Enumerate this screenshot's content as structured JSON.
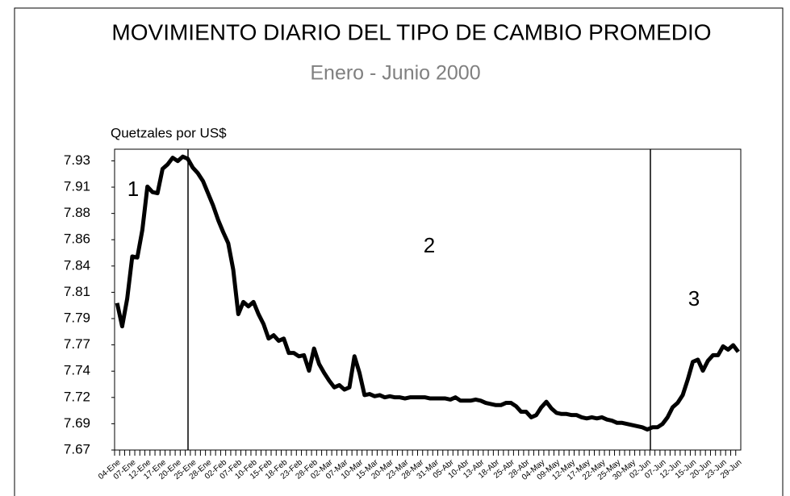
{
  "chart_data": {
    "type": "line",
    "title": "MOVIMIENTO DIARIO DEL TIPO DE CAMBIO PROMEDIO",
    "subtitle": "Enero - Junio 2000",
    "y_label": "Quetzales por US$",
    "annotations": [
      "1",
      "2",
      "3"
    ],
    "categories": [
      "04-Ene",
      null,
      null,
      "07-Ene",
      null,
      null,
      "12-Ene",
      null,
      null,
      "17-Ene",
      null,
      null,
      "20-Ene",
      null,
      null,
      "25-Ene",
      null,
      null,
      "28-Ene",
      null,
      null,
      "02-Feb",
      null,
      null,
      "07-Feb",
      null,
      null,
      "10-Feb",
      null,
      null,
      "15-Feb",
      null,
      null,
      "18-Feb",
      null,
      null,
      "23-Feb",
      null,
      null,
      "28-Feb",
      null,
      null,
      "02-Mar",
      null,
      null,
      "07-Mar",
      null,
      null,
      "10-Mar",
      null,
      null,
      "15-Mar",
      null,
      null,
      "20-Mar",
      null,
      null,
      "23-Mar",
      null,
      null,
      "28-Mar",
      null,
      null,
      "31-Mar",
      null,
      null,
      "05-Abr",
      null,
      null,
      "10-Abr",
      null,
      null,
      "13-Abr",
      null,
      null,
      "18-Abr",
      null,
      null,
      "25-Abr",
      null,
      null,
      "28-Abr",
      null,
      null,
      "04-May",
      null,
      null,
      "09-May",
      null,
      null,
      "12-May",
      null,
      null,
      "17-May",
      null,
      null,
      "22-May",
      null,
      null,
      "25-May",
      null,
      null,
      "30-May",
      null,
      null,
      "02-Jun",
      null,
      null,
      "07-Jun",
      null,
      null,
      "12-Jun",
      null,
      null,
      "15-Jun",
      null,
      null,
      "20-Jun",
      null,
      null,
      "23-Jun",
      null,
      null,
      "29-Jun"
    ],
    "values": [
      7.803,
      7.782,
      7.807,
      7.845,
      7.844,
      7.869,
      7.908,
      7.903,
      7.902,
      7.924,
      7.928,
      7.934,
      7.931,
      7.935,
      7.933,
      7.925,
      7.92,
      7.913,
      7.902,
      7.891,
      7.878,
      7.867,
      7.857,
      7.833,
      7.793,
      7.804,
      7.8,
      7.804,
      7.793,
      7.784,
      7.771,
      7.774,
      7.769,
      7.771,
      7.758,
      7.758,
      7.755,
      7.756,
      7.742,
      7.762,
      7.748,
      7.74,
      7.733,
      7.727,
      7.729,
      7.725,
      7.727,
      7.755,
      7.74,
      7.72,
      7.721,
      7.719,
      7.72,
      7.718,
      7.719,
      7.718,
      7.718,
      7.717,
      7.718,
      7.718,
      7.718,
      7.718,
      7.717,
      7.717,
      7.717,
      7.717,
      7.716,
      7.718,
      7.715,
      7.715,
      7.715,
      7.716,
      7.715,
      7.713,
      7.712,
      7.711,
      7.711,
      7.713,
      7.713,
      7.71,
      7.705,
      7.705,
      7.7,
      7.702,
      7.709,
      7.714,
      7.708,
      7.704,
      7.703,
      7.703,
      7.702,
      7.702,
      7.7,
      7.699,
      7.7,
      7.699,
      7.7,
      7.698,
      7.697,
      7.695,
      7.695,
      7.694,
      7.693,
      7.692,
      7.691,
      7.689,
      7.691,
      7.691,
      7.694,
      7.7,
      7.709,
      7.713,
      7.72,
      7.734,
      7.75,
      7.752,
      7.742,
      7.751,
      7.756,
      7.756,
      7.764,
      7.761,
      7.765,
      7.759
    ],
    "color": "#000000",
    "ylim": [
      7.6705,
      7.9417
    ],
    "yticks": [
      {
        "value": 7.6705,
        "label": "7.67"
      },
      {
        "value": 7.6942,
        "label": "7.69"
      },
      {
        "value": 7.7179,
        "label": "7.72"
      },
      {
        "value": 7.7416,
        "label": "7.74"
      },
      {
        "value": 7.7653,
        "label": "7.77"
      },
      {
        "value": 7.789,
        "label": "7.79"
      },
      {
        "value": 7.8127,
        "label": "7.81"
      },
      {
        "value": 7.8364,
        "label": "7.84"
      },
      {
        "value": 7.8601,
        "label": "7.86"
      },
      {
        "value": 7.8838,
        "label": "7.88"
      },
      {
        "value": 7.9075,
        "label": "7.91"
      },
      {
        "value": 7.9312,
        "label": "7.93"
      }
    ],
    "grid": false
  }
}
